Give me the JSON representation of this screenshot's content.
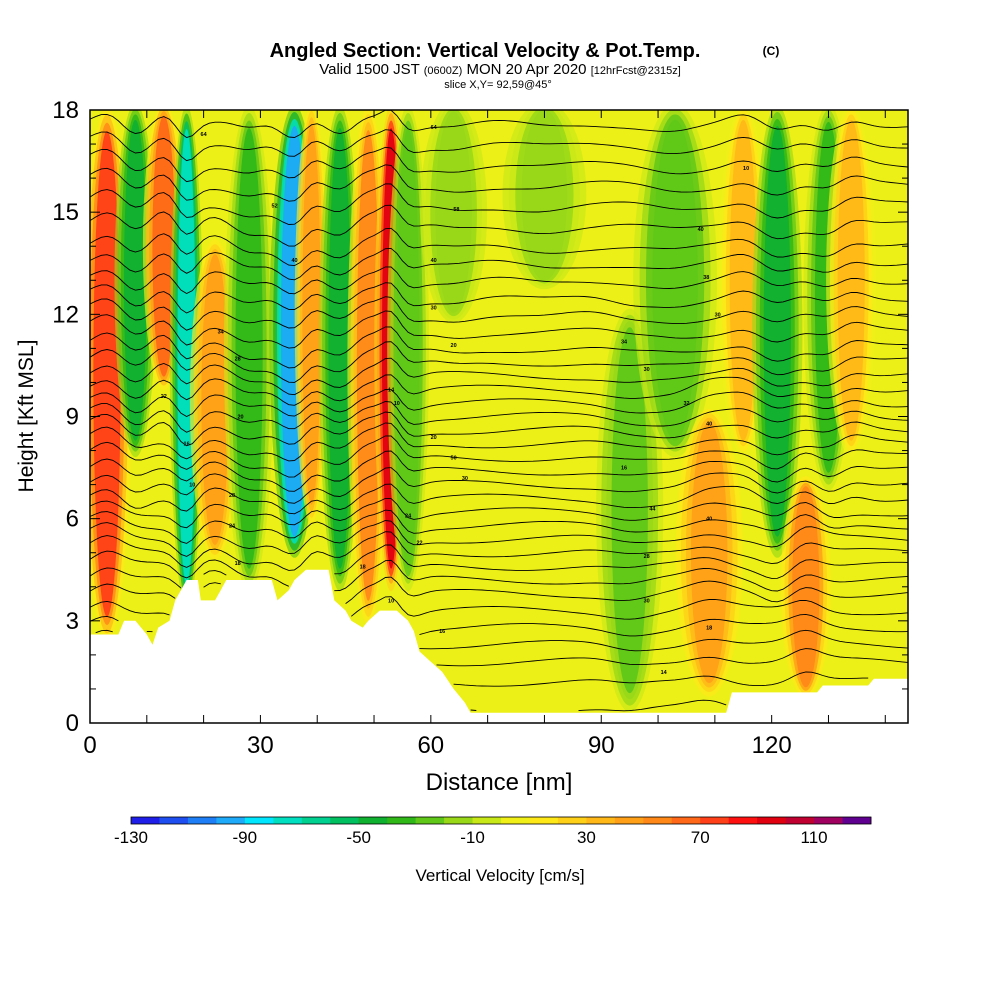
{
  "chart_data": {
    "type": "heatmap",
    "title": "Angled Section: Vertical Velocity & Pot.Temp.",
    "title_note": "(C)",
    "subtitle_main": "Valid 1500 JST",
    "subtitle_zone": "(0600Z)",
    "subtitle_date": "MON 20 Apr 2020",
    "subtitle_fcst": "[12hrFcst@2315z]",
    "slice_label": "slice X,Y= 92,59@45°",
    "xlabel": "Distance [nm]",
    "ylabel": "Height [Kft MSL]",
    "xlim": [
      0,
      144
    ],
    "ylim": [
      0,
      18
    ],
    "x_ticks": [
      "0",
      "30",
      "60",
      "90",
      "120"
    ],
    "x_tick_values": [
      0,
      30,
      60,
      90,
      120
    ],
    "y_ticks": [
      "0",
      "3",
      "6",
      "9",
      "12",
      "15",
      "18"
    ],
    "y_tick_values": [
      0,
      3,
      6,
      9,
      12,
      15,
      18
    ],
    "colorbar": {
      "label": "Vertical Velocity [cm/s]",
      "min": -130,
      "max": 130,
      "step": 10,
      "tick_labels": [
        "-130",
        "-90",
        "-50",
        "-10",
        "30",
        "70",
        "110"
      ],
      "tick_values": [
        -130,
        -90,
        -50,
        -10,
        30,
        70,
        110
      ],
      "colors": [
        "#1e1ee8",
        "#1e4ef0",
        "#1e7ef5",
        "#1eaaf8",
        "#00e6ff",
        "#00e0c0",
        "#00d090",
        "#00c060",
        "#10b030",
        "#30b818",
        "#60c818",
        "#98d818",
        "#c8e818",
        "#f0f018",
        "#ffe818",
        "#ffd018",
        "#ffb818",
        "#ffa018",
        "#ff8818",
        "#ff6818",
        "#ff4018",
        "#ff1010",
        "#e00010",
        "#c00030",
        "#a00060",
        "#600090"
      ]
    },
    "terrain_kft": [
      [
        0,
        2.6
      ],
      [
        5,
        2.6
      ],
      [
        6,
        3.0
      ],
      [
        8,
        3.0
      ],
      [
        9,
        2.8
      ],
      [
        10,
        2.6
      ],
      [
        11,
        2.3
      ],
      [
        12,
        2.8
      ],
      [
        14,
        3.0
      ],
      [
        15,
        3.6
      ],
      [
        16,
        3.9
      ],
      [
        17,
        4.2
      ],
      [
        19,
        4.2
      ],
      [
        19.5,
        3.6
      ],
      [
        22,
        3.6
      ],
      [
        23,
        3.9
      ],
      [
        24,
        4.2
      ],
      [
        32,
        4.2
      ],
      [
        33,
        3.6
      ],
      [
        35,
        3.9
      ],
      [
        36,
        4.2
      ],
      [
        38,
        4.5
      ],
      [
        42,
        4.5
      ],
      [
        43,
        3.6
      ],
      [
        45,
        3.3
      ],
      [
        46,
        3.0
      ],
      [
        48,
        2.8
      ],
      [
        49,
        3.0
      ],
      [
        51,
        3.3
      ],
      [
        53,
        3.3
      ],
      [
        54,
        3.3
      ],
      [
        56,
        3.0
      ],
      [
        57,
        2.7
      ],
      [
        58,
        2.1
      ],
      [
        60,
        1.8
      ],
      [
        62,
        1.5
      ],
      [
        64,
        1.0
      ],
      [
        66,
        0.6
      ],
      [
        67,
        0.3
      ],
      [
        95,
        0.3
      ],
      [
        106,
        0.3
      ],
      [
        112,
        0.3
      ],
      [
        113,
        0.9
      ],
      [
        128,
        0.9
      ],
      [
        129,
        1.1
      ],
      [
        137,
        1.1
      ],
      [
        138,
        1.3
      ],
      [
        144,
        1.3
      ]
    ],
    "w_bands": [
      {
        "x": 3,
        "w": 70,
        "width": 3,
        "z0": 2.5,
        "z1": 18
      },
      {
        "x": 8,
        "w": -45,
        "width": 2.5,
        "z0": 8,
        "z1": 18
      },
      {
        "x": 13,
        "w": 60,
        "width": 2.5,
        "z0": 10,
        "z1": 18
      },
      {
        "x": 17,
        "w": -80,
        "width": 2,
        "z0": 3.5,
        "z1": 18
      },
      {
        "x": 22,
        "w": 40,
        "width": 3,
        "z0": 5,
        "z1": 14
      },
      {
        "x": 28,
        "w": -40,
        "width": 3,
        "z0": 4,
        "z1": 18
      },
      {
        "x": 36,
        "w": -95,
        "width": 3,
        "z0": 5,
        "z1": 18
      },
      {
        "x": 39,
        "w": 40,
        "width": 2,
        "z0": 6,
        "z1": 18
      },
      {
        "x": 44,
        "w": -45,
        "width": 2.5,
        "z0": 4,
        "z1": 18
      },
      {
        "x": 49,
        "w": 50,
        "width": 2.5,
        "z0": 3,
        "z1": 18
      },
      {
        "x": 53,
        "w": 95,
        "width": 2,
        "z0": 4,
        "z1": 18
      },
      {
        "x": 56,
        "w": -30,
        "width": 2.5,
        "z0": 4,
        "z1": 18
      },
      {
        "x": 64,
        "w": -20,
        "width": 4,
        "z0": 12,
        "z1": 18
      },
      {
        "x": 80,
        "w": -20,
        "width": 5,
        "z0": 13,
        "z1": 18
      },
      {
        "x": 95,
        "w": -25,
        "width": 4,
        "z0": 0.5,
        "z1": 12
      },
      {
        "x": 103,
        "w": -30,
        "width": 5,
        "z0": 8,
        "z1": 18
      },
      {
        "x": 109,
        "w": 45,
        "width": 4,
        "z0": 1,
        "z1": 9
      },
      {
        "x": 115,
        "w": 30,
        "width": 3,
        "z0": 8,
        "z1": 18
      },
      {
        "x": 121,
        "w": -50,
        "width": 3,
        "z0": 5,
        "z1": 18
      },
      {
        "x": 126,
        "w": 55,
        "width": 3,
        "z0": 1,
        "z1": 7
      },
      {
        "x": 130,
        "w": -40,
        "width": 3,
        "z0": 7,
        "z1": 18
      },
      {
        "x": 134,
        "w": 35,
        "width": 3,
        "z0": 8,
        "z1": 18
      }
    ],
    "theta_levels_kft": [
      0.4,
      1.2,
      1.8,
      2.3,
      2.8,
      3.3,
      3.8,
      4.2,
      4.6,
      5.0,
      5.4,
      5.8,
      6.2,
      6.6,
      7.0,
      7.4,
      7.8,
      8.2,
      8.6,
      9.0,
      9.4,
      9.8,
      10.2,
      10.6,
      11.0,
      11.5,
      12.0,
      12.5,
      13.0,
      13.5,
      14.0,
      14.6,
      15.2,
      15.8,
      16.4,
      17.0,
      17.6
    ],
    "contour_labels": [
      {
        "x": 20,
        "z": 17.3,
        "text": "64"
      },
      {
        "x": 32.5,
        "z": 15.2,
        "text": "52"
      },
      {
        "x": 36,
        "z": 13.6,
        "text": "40"
      },
      {
        "x": 23,
        "z": 11.5,
        "text": "34"
      },
      {
        "x": 26,
        "z": 10.7,
        "text": "28"
      },
      {
        "x": 13,
        "z": 9.6,
        "text": "22"
      },
      {
        "x": 26.5,
        "z": 9.0,
        "text": "20"
      },
      {
        "x": 17,
        "z": 8.2,
        "text": "16"
      },
      {
        "x": 18,
        "z": 7.0,
        "text": "10"
      },
      {
        "x": 25,
        "z": 6.7,
        "text": "28"
      },
      {
        "x": 25,
        "z": 5.8,
        "text": "24"
      },
      {
        "x": 26,
        "z": 4.7,
        "text": "18"
      },
      {
        "x": 60.5,
        "z": 17.5,
        "text": "64"
      },
      {
        "x": 64.5,
        "z": 15.1,
        "text": "58"
      },
      {
        "x": 60.5,
        "z": 13.6,
        "text": "40"
      },
      {
        "x": 60.5,
        "z": 12.2,
        "text": "30"
      },
      {
        "x": 64,
        "z": 11.1,
        "text": "20"
      },
      {
        "x": 53,
        "z": 9.8,
        "text": "14"
      },
      {
        "x": 54,
        "z": 9.4,
        "text": "10"
      },
      {
        "x": 60.5,
        "z": 8.4,
        "text": "20"
      },
      {
        "x": 64,
        "z": 7.8,
        "text": "50"
      },
      {
        "x": 66,
        "z": 7.2,
        "text": "30"
      },
      {
        "x": 56,
        "z": 6.1,
        "text": "24"
      },
      {
        "x": 58,
        "z": 5.3,
        "text": "22"
      },
      {
        "x": 48,
        "z": 4.6,
        "text": "18"
      },
      {
        "x": 53,
        "z": 3.6,
        "text": "10"
      },
      {
        "x": 62,
        "z": 2.7,
        "text": "16"
      },
      {
        "x": 115.5,
        "z": 16.3,
        "text": "10"
      },
      {
        "x": 107.5,
        "z": 14.5,
        "text": "40"
      },
      {
        "x": 108.5,
        "z": 13.1,
        "text": "38"
      },
      {
        "x": 110.5,
        "z": 12.0,
        "text": "30"
      },
      {
        "x": 94,
        "z": 11.2,
        "text": "34"
      },
      {
        "x": 98,
        "z": 10.4,
        "text": "30"
      },
      {
        "x": 105,
        "z": 9.4,
        "text": "32"
      },
      {
        "x": 109,
        "z": 8.8,
        "text": "40"
      },
      {
        "x": 94,
        "z": 7.5,
        "text": "16"
      },
      {
        "x": 99,
        "z": 6.3,
        "text": "44"
      },
      {
        "x": 109,
        "z": 6.0,
        "text": "40"
      },
      {
        "x": 98,
        "z": 4.9,
        "text": "28"
      },
      {
        "x": 98,
        "z": 3.6,
        "text": "30"
      },
      {
        "x": 109,
        "z": 2.8,
        "text": "18"
      },
      {
        "x": 101,
        "z": 1.5,
        "text": "14"
      }
    ]
  }
}
